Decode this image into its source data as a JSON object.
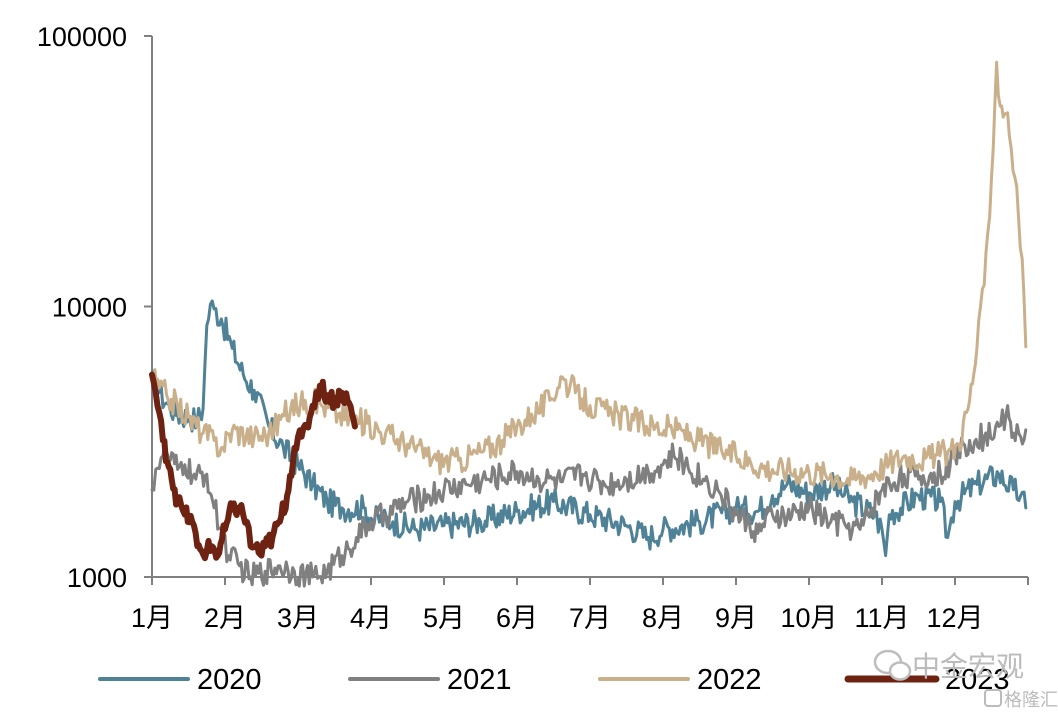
{
  "chart_data": {
    "type": "line",
    "title": "",
    "xlabel": "",
    "ylabel": "",
    "y_scale": "log",
    "ylim": [
      1000,
      100000
    ],
    "y_ticks": [
      "1000",
      "10000",
      "100000"
    ],
    "y_tick_values": [
      1000,
      10000,
      100000
    ],
    "x_ticks": [
      "1月",
      "2月",
      "3月",
      "4月",
      "5月",
      "6月",
      "7月",
      "8月",
      "9月",
      "10月",
      "11月",
      "12月"
    ],
    "x_tick_months": [
      1,
      2,
      3,
      4,
      5,
      6,
      7,
      8,
      9,
      10,
      11,
      12
    ],
    "xlim_months": [
      1,
      13
    ],
    "grid": false,
    "legend_position": "bottom",
    "series": [
      {
        "name": "2020",
        "color": "#4f8296",
        "width": 3,
        "points": [
          [
            1.0,
            5400
          ],
          [
            1.1,
            4800
          ],
          [
            1.2,
            4400
          ],
          [
            1.35,
            4000
          ],
          [
            1.5,
            3900
          ],
          [
            1.62,
            3800
          ],
          [
            1.7,
            4200
          ],
          [
            1.75,
            8500
          ],
          [
            1.8,
            10200
          ],
          [
            1.85,
            9800
          ],
          [
            1.95,
            9000
          ],
          [
            2.1,
            7000
          ],
          [
            2.25,
            5600
          ],
          [
            2.4,
            4900
          ],
          [
            2.6,
            3600
          ],
          [
            2.8,
            3000
          ],
          [
            3.0,
            2600
          ],
          [
            3.2,
            2200
          ],
          [
            3.4,
            1900
          ],
          [
            3.6,
            1800
          ],
          [
            3.9,
            1800
          ],
          [
            4.0,
            1650
          ],
          [
            4.3,
            1600
          ],
          [
            4.6,
            1500
          ],
          [
            5.0,
            1550
          ],
          [
            5.5,
            1600
          ],
          [
            6.0,
            1750
          ],
          [
            6.5,
            1900
          ],
          [
            7.0,
            1700
          ],
          [
            7.5,
            1550
          ],
          [
            7.8,
            1400
          ],
          [
            8.0,
            1500
          ],
          [
            8.5,
            1600
          ],
          [
            9.0,
            1800
          ],
          [
            9.3,
            1750
          ],
          [
            9.5,
            2000
          ],
          [
            9.7,
            2200
          ],
          [
            10.0,
            2050
          ],
          [
            10.3,
            2200
          ],
          [
            10.6,
            1900
          ],
          [
            10.9,
            1700
          ],
          [
            11.0,
            1500
          ],
          [
            11.05,
            1200
          ],
          [
            11.1,
            1700
          ],
          [
            11.5,
            2000
          ],
          [
            11.8,
            1900
          ],
          [
            11.9,
            1400
          ],
          [
            12.0,
            1900
          ],
          [
            12.3,
            2200
          ],
          [
            12.6,
            2400
          ],
          [
            12.8,
            2100
          ],
          [
            12.9,
            2000
          ],
          [
            12.97,
            1800
          ]
        ]
      },
      {
        "name": "2021",
        "color": "#808080",
        "width": 3,
        "points": [
          [
            1.0,
            2100
          ],
          [
            1.05,
            2500
          ],
          [
            1.15,
            2800
          ],
          [
            1.25,
            2700
          ],
          [
            1.35,
            2500
          ],
          [
            1.45,
            2600
          ],
          [
            1.6,
            2300
          ],
          [
            1.75,
            2400
          ],
          [
            1.85,
            1800
          ],
          [
            1.95,
            1500
          ],
          [
            2.05,
            1200
          ],
          [
            2.2,
            1100
          ],
          [
            2.35,
            1000
          ],
          [
            2.55,
            1050
          ],
          [
            2.75,
            1100
          ],
          [
            2.95,
            1050
          ],
          [
            3.2,
            1000
          ],
          [
            3.4,
            1050
          ],
          [
            3.6,
            1200
          ],
          [
            3.8,
            1400
          ],
          [
            4.0,
            1600
          ],
          [
            4.2,
            1700
          ],
          [
            4.5,
            1900
          ],
          [
            4.8,
            2000
          ],
          [
            5.0,
            2100
          ],
          [
            5.3,
            2200
          ],
          [
            5.6,
            2300
          ],
          [
            6.0,
            2450
          ],
          [
            6.3,
            2300
          ],
          [
            6.6,
            2250
          ],
          [
            6.9,
            2400
          ],
          [
            7.2,
            2200
          ],
          [
            7.5,
            2300
          ],
          [
            7.8,
            2450
          ],
          [
            8.0,
            2600
          ],
          [
            8.15,
            2800
          ],
          [
            8.3,
            2600
          ],
          [
            8.55,
            2300
          ],
          [
            8.75,
            2100
          ],
          [
            9.0,
            1700
          ],
          [
            9.15,
            1600
          ],
          [
            9.3,
            1450
          ],
          [
            9.5,
            1700
          ],
          [
            9.7,
            1650
          ],
          [
            10.0,
            1800
          ],
          [
            10.3,
            1600
          ],
          [
            10.5,
            1550
          ],
          [
            10.7,
            1500
          ],
          [
            11.0,
            2100
          ],
          [
            11.3,
            2400
          ],
          [
            11.5,
            2300
          ],
          [
            11.8,
            2400
          ],
          [
            12.0,
            2800
          ],
          [
            12.2,
            3200
          ],
          [
            12.4,
            3300
          ],
          [
            12.6,
            3600
          ],
          [
            12.7,
            4000
          ],
          [
            12.8,
            3400
          ],
          [
            12.9,
            3300
          ],
          [
            12.97,
            3500
          ]
        ]
      },
      {
        "name": "2022",
        "color": "#c9b08b",
        "width": 3,
        "points": [
          [
            1.0,
            5500
          ],
          [
            1.1,
            5000
          ],
          [
            1.2,
            4700
          ],
          [
            1.35,
            4300
          ],
          [
            1.5,
            3900
          ],
          [
            1.7,
            3400
          ],
          [
            1.85,
            3200
          ],
          [
            1.95,
            3000
          ],
          [
            2.1,
            3500
          ],
          [
            2.4,
            3300
          ],
          [
            2.6,
            3400
          ],
          [
            2.9,
            4200
          ],
          [
            3.1,
            4500
          ],
          [
            3.3,
            4400
          ],
          [
            3.55,
            4000
          ],
          [
            3.75,
            3800
          ],
          [
            3.95,
            3700
          ],
          [
            4.2,
            3400
          ],
          [
            4.5,
            3100
          ],
          [
            4.9,
            2700
          ],
          [
            5.2,
            2700
          ],
          [
            5.5,
            2900
          ],
          [
            5.8,
            3200
          ],
          [
            6.0,
            3600
          ],
          [
            6.2,
            4000
          ],
          [
            6.45,
            4500
          ],
          [
            6.6,
            5500
          ],
          [
            6.8,
            4800
          ],
          [
            7.0,
            4300
          ],
          [
            7.3,
            4000
          ],
          [
            7.6,
            3800
          ],
          [
            7.9,
            3600
          ],
          [
            8.2,
            3500
          ],
          [
            8.5,
            3200
          ],
          [
            8.8,
            2950
          ],
          [
            9.0,
            2800
          ],
          [
            9.2,
            2650
          ],
          [
            9.5,
            2500
          ],
          [
            9.7,
            2500
          ],
          [
            10.0,
            2450
          ],
          [
            10.3,
            2400
          ],
          [
            10.6,
            2300
          ],
          [
            10.9,
            2450
          ],
          [
            11.1,
            2650
          ],
          [
            11.3,
            2800
          ],
          [
            11.6,
            2750
          ],
          [
            11.9,
            2900
          ],
          [
            12.05,
            3100
          ],
          [
            12.2,
            4500
          ],
          [
            12.3,
            7000
          ],
          [
            12.4,
            12000
          ],
          [
            12.5,
            30000
          ],
          [
            12.57,
            80000
          ],
          [
            12.62,
            55000
          ],
          [
            12.72,
            52000
          ],
          [
            12.82,
            30000
          ],
          [
            12.92,
            15000
          ],
          [
            12.97,
            7100
          ]
        ]
      },
      {
        "name": "2023",
        "color": "#6e2211",
        "width": 6,
        "points": [
          [
            1.0,
            5600
          ],
          [
            1.05,
            4800
          ],
          [
            1.15,
            3200
          ],
          [
            1.25,
            2500
          ],
          [
            1.35,
            1900
          ],
          [
            1.45,
            1700
          ],
          [
            1.55,
            1600
          ],
          [
            1.62,
            1300
          ],
          [
            1.68,
            1250
          ],
          [
            1.75,
            1250
          ],
          [
            1.82,
            1300
          ],
          [
            1.9,
            1200
          ],
          [
            2.0,
            1500
          ],
          [
            2.1,
            1800
          ],
          [
            2.2,
            1800
          ],
          [
            2.3,
            1600
          ],
          [
            2.35,
            1300
          ],
          [
            2.42,
            1300
          ],
          [
            2.5,
            1200
          ],
          [
            2.55,
            1300
          ],
          [
            2.65,
            1400
          ],
          [
            2.75,
            1600
          ],
          [
            2.85,
            2000
          ],
          [
            2.95,
            3000
          ],
          [
            3.05,
            3300
          ],
          [
            3.12,
            3600
          ],
          [
            3.2,
            4300
          ],
          [
            3.3,
            5100
          ],
          [
            3.4,
            4700
          ],
          [
            3.5,
            4500
          ],
          [
            3.6,
            4800
          ],
          [
            3.7,
            4400
          ],
          [
            3.78,
            3600
          ]
        ]
      }
    ]
  },
  "watermark": {
    "brand": "中金宏观",
    "site": "格隆汇"
  }
}
